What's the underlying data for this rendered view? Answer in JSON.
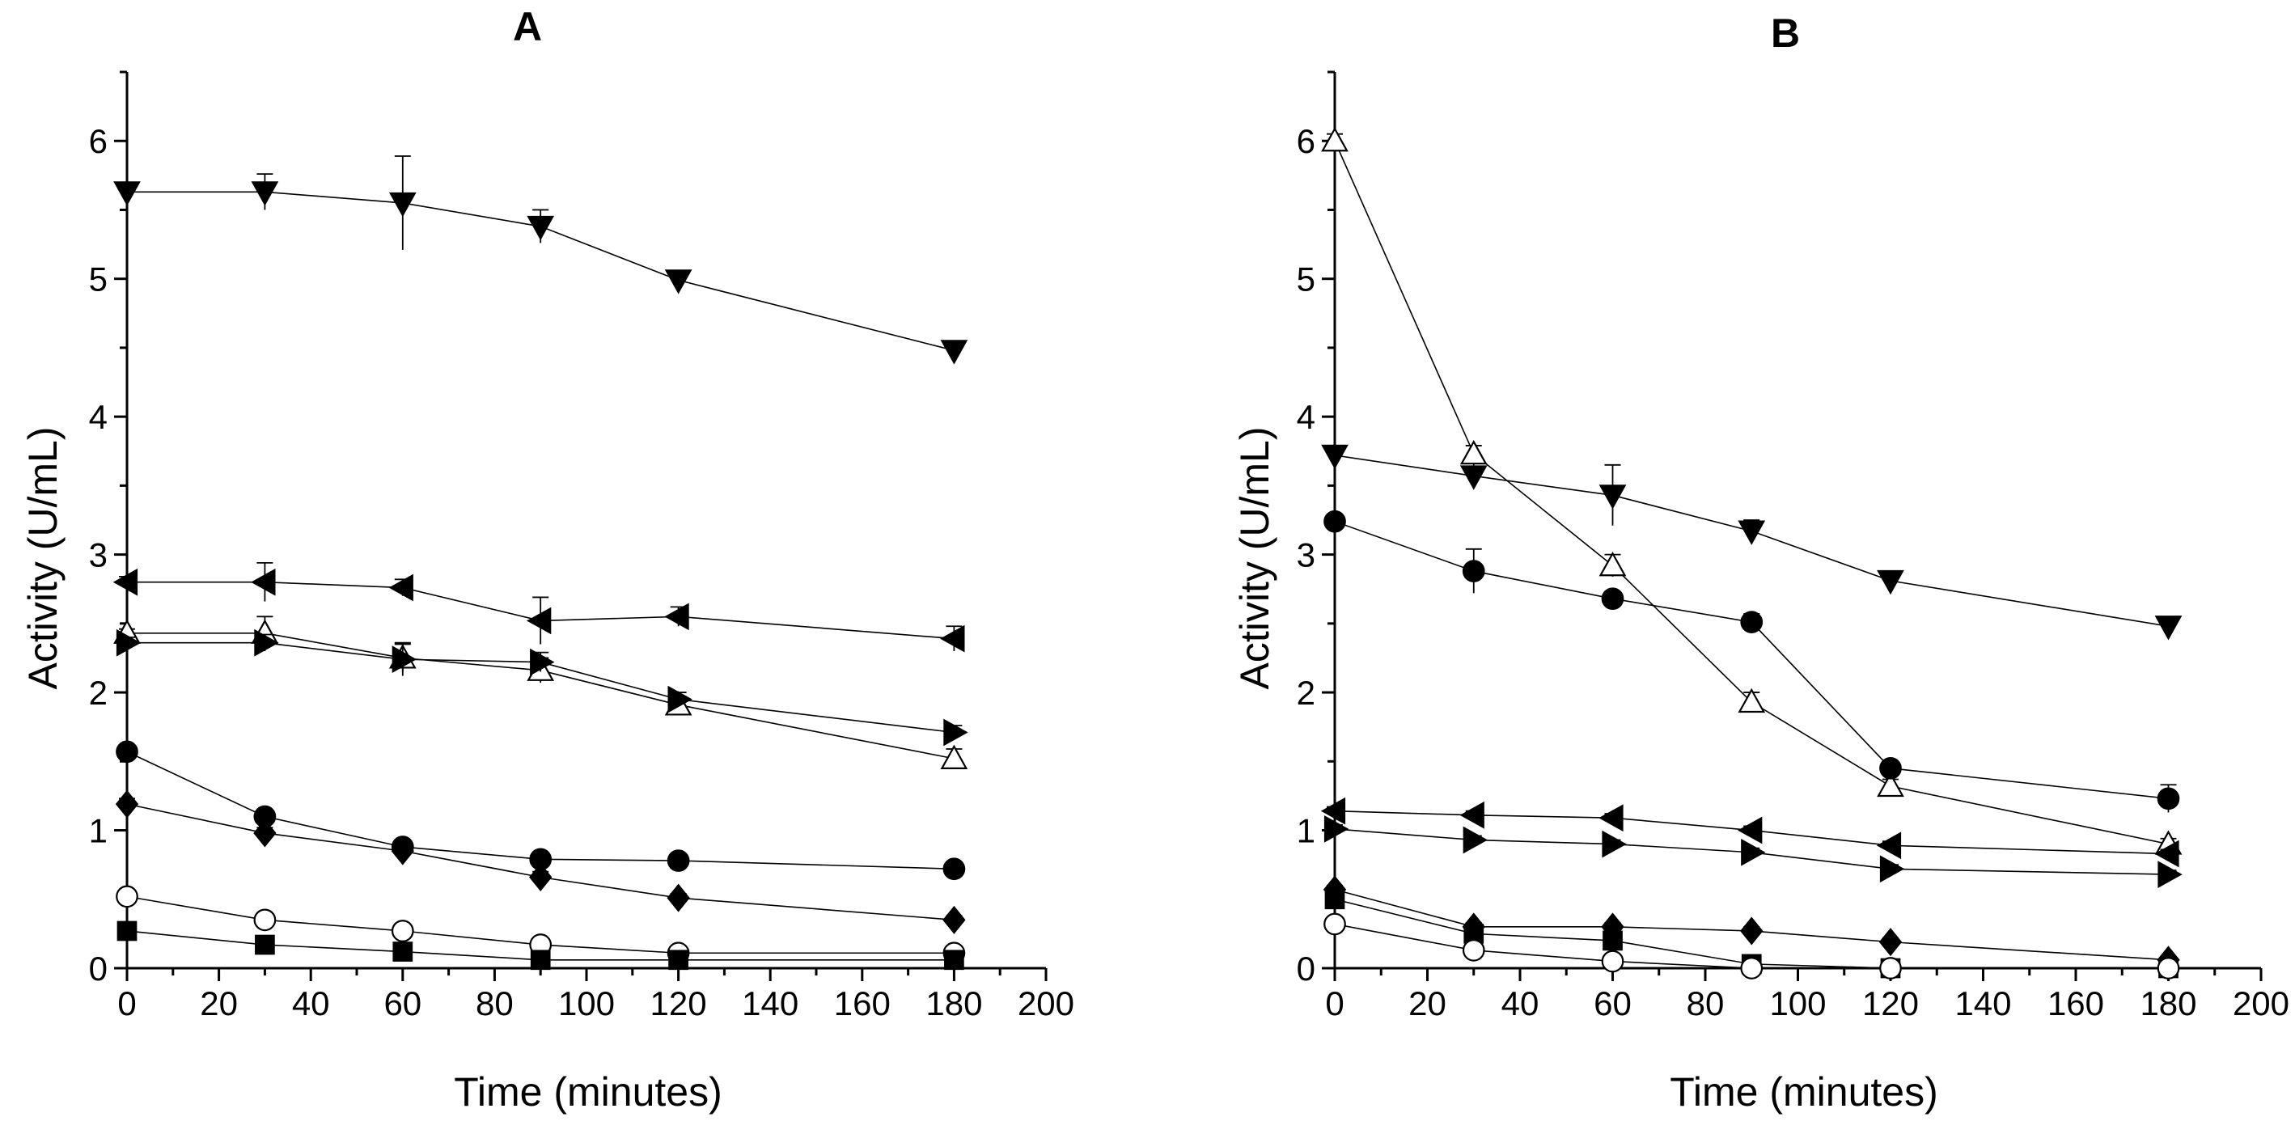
{
  "chart_data": [
    {
      "type": "line",
      "title": "A",
      "xlabel": "Time (minutes)",
      "ylabel": "Activity (U/mL)",
      "xlim": [
        0,
        200
      ],
      "ylim": [
        0,
        6.5
      ],
      "x_ticks": [
        "0",
        "20",
        "40",
        "60",
        "80",
        "100",
        "120",
        "140",
        "160",
        "180",
        "200"
      ],
      "y_ticks": [
        "0",
        "1",
        "2",
        "3",
        "4",
        "5",
        "6"
      ],
      "x": [
        0,
        30,
        60,
        90,
        120,
        180
      ],
      "series": [
        {
          "name": "filled down-triangle",
          "marker": "tri-down",
          "filled": true,
          "values": [
            5.63,
            5.63,
            5.55,
            5.38,
            4.99,
            4.48
          ],
          "errors": [
            0.05,
            0.13,
            0.34,
            0.12,
            0.07,
            0.06
          ]
        },
        {
          "name": "filled left-triangle",
          "marker": "tri-left",
          "filled": true,
          "values": [
            2.8,
            2.8,
            2.76,
            2.52,
            2.55,
            2.39
          ],
          "errors": [
            0.04,
            0.14,
            0.06,
            0.17,
            0.07,
            0.09
          ]
        },
        {
          "name": "open up-triangle",
          "marker": "tri-up",
          "filled": false,
          "values": [
            2.43,
            2.43,
            2.25,
            2.16,
            1.91,
            1.52
          ],
          "errors": [
            0.03,
            0.12,
            0.1,
            0.09,
            0.06,
            0.07
          ]
        },
        {
          "name": "filled right-triangle",
          "marker": "tri-right",
          "filled": true,
          "values": [
            2.36,
            2.36,
            2.24,
            2.22,
            1.95,
            1.71
          ],
          "errors": [
            0.04,
            0.06,
            0.12,
            0.07,
            0.05,
            0.05
          ]
        },
        {
          "name": "filled circle",
          "marker": "circle",
          "filled": true,
          "values": [
            1.57,
            1.1,
            0.88,
            0.79,
            0.78,
            0.72
          ],
          "errors": [
            0.04,
            0.05,
            0.05,
            0.04,
            0.04,
            0.04
          ]
        },
        {
          "name": "filled diamond",
          "marker": "diamond",
          "filled": true,
          "values": [
            1.19,
            0.98,
            0.85,
            0.66,
            0.51,
            0.35
          ],
          "errors": [
            0.04,
            0.04,
            0.05,
            0.04,
            0.03,
            0.03
          ]
        },
        {
          "name": "open circle",
          "marker": "circle",
          "filled": false,
          "values": [
            0.52,
            0.35,
            0.27,
            0.17,
            0.11,
            0.11
          ],
          "errors": [
            0.04,
            0.04,
            0.04,
            0.04,
            0.04,
            0.04
          ]
        },
        {
          "name": "filled square",
          "marker": "square",
          "filled": true,
          "values": [
            0.27,
            0.17,
            0.12,
            0.06,
            0.06,
            0.06
          ],
          "errors": [
            0.02,
            0.02,
            0.02,
            0.02,
            0.02,
            0.02
          ]
        }
      ]
    },
    {
      "type": "line",
      "title": "B",
      "xlabel": "Time (minutes)",
      "ylabel": "Activity (U/mL)",
      "xlim": [
        0,
        200
      ],
      "ylim": [
        0,
        6.5
      ],
      "x_ticks": [
        "0",
        "20",
        "40",
        "60",
        "80",
        "100",
        "120",
        "140",
        "160",
        "180",
        "200"
      ],
      "y_ticks": [
        "0",
        "1",
        "2",
        "3",
        "4",
        "5",
        "6"
      ],
      "x": [
        0,
        30,
        60,
        90,
        120,
        180
      ],
      "series": [
        {
          "name": "open up-triangle",
          "marker": "tri-up",
          "filled": false,
          "values": [
            6.0,
            3.73,
            2.92,
            1.93,
            1.32,
            0.9
          ],
          "errors": [
            0.05,
            0.06,
            0.08,
            0.07,
            0.05,
            0.04
          ]
        },
        {
          "name": "filled down-triangle",
          "marker": "tri-down",
          "filled": true,
          "values": [
            3.72,
            3.57,
            3.43,
            3.17,
            2.81,
            2.48
          ],
          "errors": [
            0.06,
            0.09,
            0.22,
            0.08,
            0.06,
            0.05
          ]
        },
        {
          "name": "filled circle",
          "marker": "circle",
          "filled": true,
          "values": [
            3.24,
            2.88,
            2.68,
            2.51,
            1.45,
            1.23
          ],
          "errors": [
            0.05,
            0.16,
            0.05,
            0.06,
            0.05,
            0.1
          ]
        },
        {
          "name": "filled left-triangle",
          "marker": "tri-left",
          "filled": true,
          "values": [
            1.14,
            1.11,
            1.09,
            1.0,
            0.89,
            0.83
          ],
          "errors": [
            0.03,
            0.03,
            0.03,
            0.03,
            0.03,
            0.03
          ]
        },
        {
          "name": "filled right-triangle",
          "marker": "tri-right",
          "filled": true,
          "values": [
            1.01,
            0.93,
            0.9,
            0.84,
            0.72,
            0.68
          ],
          "errors": [
            0.03,
            0.03,
            0.03,
            0.03,
            0.03,
            0.03
          ]
        },
        {
          "name": "filled diamond",
          "marker": "diamond",
          "filled": true,
          "values": [
            0.57,
            0.3,
            0.3,
            0.27,
            0.19,
            0.06
          ],
          "errors": [
            0.03,
            0.03,
            0.03,
            0.03,
            0.03,
            0.02
          ]
        },
        {
          "name": "filled square",
          "marker": "square",
          "filled": true,
          "values": [
            0.5,
            0.25,
            0.2,
            0.03,
            0.0,
            0.0
          ],
          "errors": [
            0.02,
            0.02,
            0.02,
            0.02,
            0.02,
            0.02
          ]
        },
        {
          "name": "open circle",
          "marker": "circle",
          "filled": false,
          "values": [
            0.32,
            0.13,
            0.05,
            0.0,
            0.0,
            0.0
          ],
          "errors": [
            0.03,
            0.03,
            0.03,
            0.02,
            0.02,
            0.02
          ]
        }
      ]
    }
  ]
}
